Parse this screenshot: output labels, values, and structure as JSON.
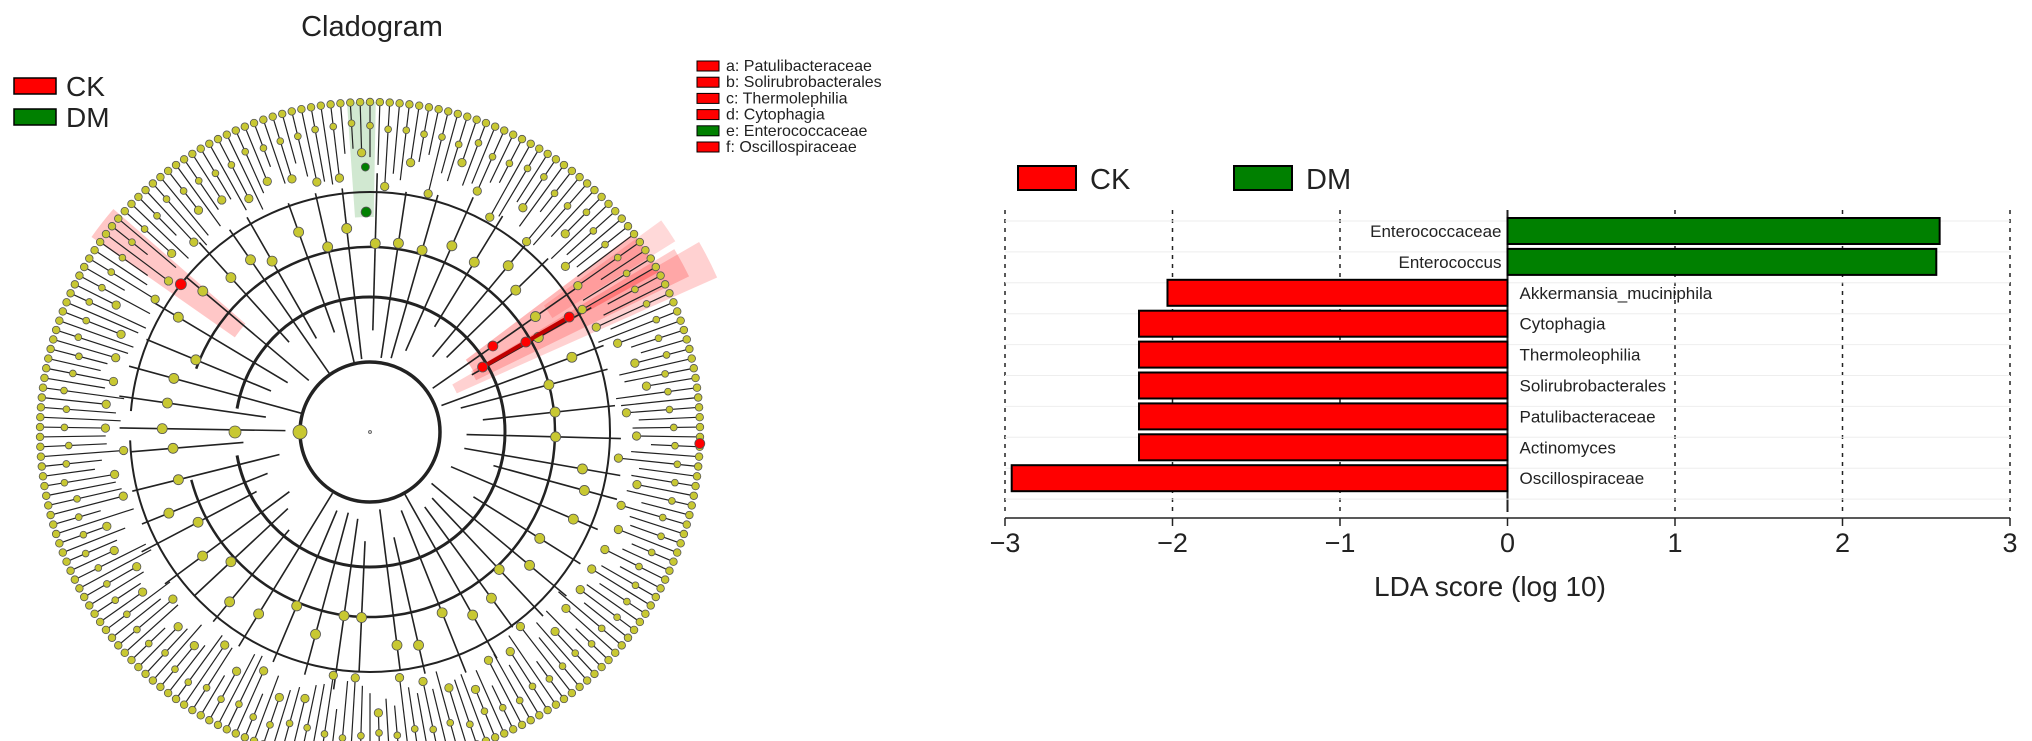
{
  "cladogram": {
    "title": "Cladogram",
    "groups": [
      {
        "name": "CK",
        "color": "#ff0000"
      },
      {
        "name": "DM",
        "color": "#008000"
      }
    ],
    "highlighted_taxa": [
      {
        "letter": "a",
        "label": "a: Patulibacteraceae",
        "group": "CK"
      },
      {
        "letter": "b",
        "label": "b: Solirubrobacterales",
        "group": "CK"
      },
      {
        "letter": "c",
        "label": "c: Thermolephilia",
        "group": "CK"
      },
      {
        "letter": "d",
        "label": "d: Cytophagia",
        "group": "CK"
      },
      {
        "letter": "e",
        "label": "e: Enterococcaceae",
        "group": "DM"
      },
      {
        "letter": "f",
        "label": "f: Oscillospiraceae",
        "group": "CK"
      }
    ],
    "node_color": "#c8c832"
  },
  "chart_data": {
    "type": "bar",
    "orientation": "horizontal",
    "categories": [
      "Enterococcaceae",
      "Enterococcus",
      "Akkermansia_muciniphila",
      "Cytophagia",
      "Thermoleophilia",
      "Solirubrobacterales",
      "Patulibacteraceae",
      "Actinomyces",
      "Oscillospiraceae"
    ],
    "values": [
      2.58,
      2.56,
      -2.03,
      -2.2,
      -2.2,
      -2.2,
      -2.2,
      -2.2,
      -2.96
    ],
    "groups": [
      "DM",
      "DM",
      "CK",
      "CK",
      "CK",
      "CK",
      "CK",
      "CK",
      "CK"
    ],
    "legend": [
      {
        "name": "CK",
        "color": "#ff0000"
      },
      {
        "name": "DM",
        "color": "#008000"
      }
    ],
    "legend_position": "top-left",
    "xlabel": "LDA score (log 10)",
    "xlim": [
      -3,
      3
    ],
    "xticks": [
      -3,
      -2,
      -1,
      0,
      1,
      2,
      3
    ],
    "xtick_labels": [
      "−3",
      "−2",
      "−1",
      "0",
      "1",
      "2",
      "3"
    ],
    "grid": true
  }
}
